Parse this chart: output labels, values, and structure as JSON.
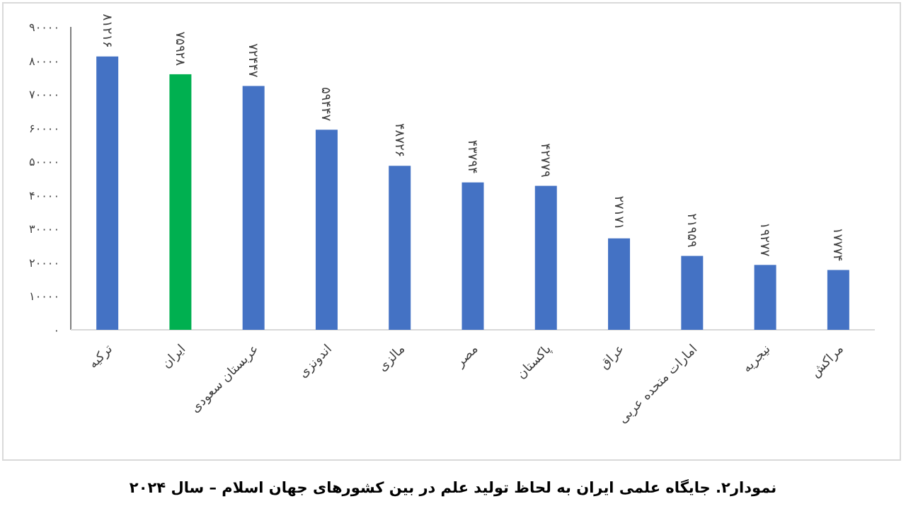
{
  "chart_data": {
    "type": "bar",
    "categories": [
      "ترکیه",
      "ایران",
      "عربستان سعودی",
      "اندونزی",
      "مالزی",
      "مصر",
      "پاکستان",
      "عراق",
      "امارات متحده عربی",
      "نیجریه",
      "مراکش"
    ],
    "values": [
      81216,
      75928,
      72447,
      59447,
      48726,
      43794,
      42779,
      27171,
      21959,
      19277,
      17774
    ],
    "colors": [
      "#4472c4",
      "#00b050",
      "#4472c4",
      "#4472c4",
      "#4472c4",
      "#4472c4",
      "#4472c4",
      "#4472c4",
      "#4472c4",
      "#4472c4",
      "#4472c4"
    ],
    "value_labels": [
      "۸۱۲۱۶",
      "۷۵۹۲۸",
      "۷۲۴۴۷",
      "۵۹۴۴۷",
      "۴۸۷۲۶",
      "۴۳۷۹۴",
      "۴۲۷۷۹",
      "۲۷۱۷۱",
      "۲۱۹۵۹",
      "۱۹۲۷۷",
      "۱۷۷۷۴"
    ],
    "ylim": [
      0,
      90000
    ],
    "yticks": [
      {
        "value": 0,
        "label": "۰"
      },
      {
        "value": 10000,
        "label": "۱۰۰۰۰"
      },
      {
        "value": 20000,
        "label": "۲۰۰۰۰"
      },
      {
        "value": 30000,
        "label": "۳۰۰۰۰"
      },
      {
        "value": 40000,
        "label": "۴۰۰۰۰"
      },
      {
        "value": 50000,
        "label": "۵۰۰۰۰"
      },
      {
        "value": 60000,
        "label": "۶۰۰۰۰"
      },
      {
        "value": 70000,
        "label": "۷۰۰۰۰"
      },
      {
        "value": 80000,
        "label": "۸۰۰۰۰"
      },
      {
        "value": 90000,
        "label": "۹۰۰۰۰"
      }
    ],
    "annotations": [
      "نمودار۲. جایگاه علمی ایران به لحاظ تولید علم در بین کشورهای جهان اسلام – سال ۲۰۲۴"
    ]
  }
}
